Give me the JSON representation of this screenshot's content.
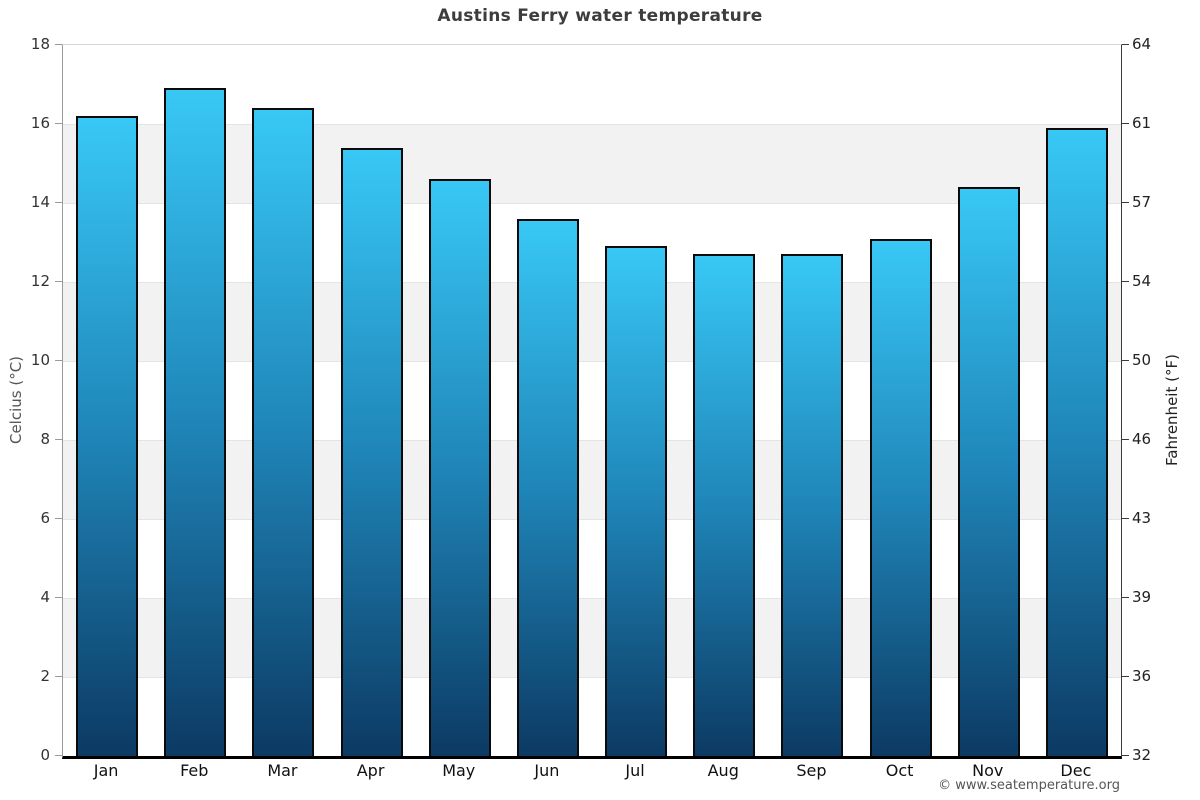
{
  "chart_data": {
    "type": "bar",
    "title": "Austins Ferry water temperature",
    "categories": [
      "Jan",
      "Feb",
      "Mar",
      "Apr",
      "May",
      "Jun",
      "Jul",
      "Aug",
      "Sep",
      "Oct",
      "Nov",
      "Dec"
    ],
    "values": [
      16.2,
      16.9,
      16.4,
      15.4,
      14.6,
      13.6,
      12.9,
      12.7,
      12.7,
      13.1,
      14.4,
      15.9
    ],
    "ylabel_left": "Celcius (°C)",
    "ylabel_right": "Fahrenheit (°F)",
    "ylim_celsius": [
      0,
      18
    ],
    "celsius_ticks": [
      0,
      2,
      4,
      6,
      8,
      10,
      12,
      14,
      16,
      18
    ],
    "fahrenheit_tick_labels": [
      "32",
      "36",
      "39",
      "43",
      "46",
      "50",
      "54",
      "57",
      "61",
      "64"
    ],
    "shaded_bands_celsius": [
      [
        14,
        16
      ],
      [
        10,
        12
      ],
      [
        6,
        8
      ],
      [
        2,
        4
      ]
    ],
    "grid": true,
    "legend": "none",
    "colors": {
      "bar_gradient_top": "#38c8f5",
      "bar_gradient_mid": "#1f85b8",
      "bar_gradient_bottom": "#0c3a63",
      "bar_border": "#0a0a0a",
      "band_fill": "#f2f2f2",
      "gridline": "#e4e4e4",
      "left_tick": "#9a9a9a",
      "right_tick": "#3a3a3a"
    }
  },
  "footer": {
    "text": "© www.seatemperature.org"
  }
}
